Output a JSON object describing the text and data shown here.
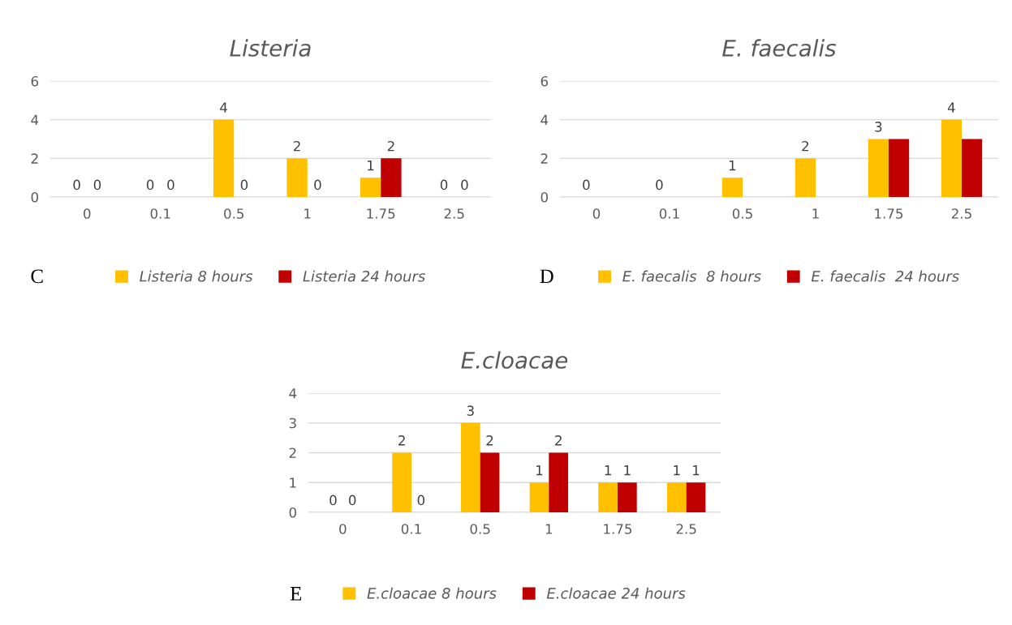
{
  "chart_data": [
    {
      "type": "bar",
      "title": "Listeria",
      "categories": [
        "0",
        "0.1",
        "0.5",
        "1",
        "1.75",
        "2.5"
      ],
      "ylim": [
        0,
        6
      ],
      "yticks": [
        0,
        2,
        4,
        6
      ],
      "grid": "y",
      "legend": "bottom",
      "data_labels": true,
      "annotations": [
        "C"
      ],
      "series": [
        {
          "name": "Listeria 8 hours",
          "color": "#ffc000",
          "values": [
            0,
            0,
            4,
            2,
            1,
            0
          ]
        },
        {
          "name": "Listeria 24 hours",
          "color": "#c00000",
          "values": [
            0,
            0,
            0,
            0,
            2,
            0
          ]
        }
      ]
    },
    {
      "type": "bar",
      "title": "E. faecalis",
      "categories": [
        "0",
        "0.1",
        "0.5",
        "1",
        "1.75",
        "2.5"
      ],
      "ylim": [
        0,
        6
      ],
      "yticks": [
        0,
        2,
        4,
        6
      ],
      "grid": "y",
      "legend": "bottom",
      "annotations": [
        "D"
      ],
      "series": [
        {
          "name": "E. faecalis  8 hours",
          "color": "#ffc000",
          "values": [
            0,
            0,
            1,
            2,
            3,
            4
          ],
          "value_labels": [
            "0",
            "0",
            "1",
            "2",
            "3",
            "4"
          ]
        },
        {
          "name": "E. faecalis  24 hours",
          "color": "#c00000",
          "values": [
            0,
            0,
            0,
            0,
            3,
            3
          ],
          "value_labels": [
            null,
            null,
            null,
            null,
            null,
            null
          ]
        }
      ]
    },
    {
      "type": "bar",
      "title": "E.cloacae",
      "categories": [
        "0",
        "0.1",
        "0.5",
        "1",
        "1.75",
        "2.5"
      ],
      "ylim": [
        0,
        4
      ],
      "yticks": [
        0,
        1,
        2,
        3,
        4
      ],
      "grid": "y",
      "legend": "bottom",
      "data_labels": true,
      "annotations": [
        "E"
      ],
      "series": [
        {
          "name": "E.cloacae 8 hours",
          "color": "#ffc000",
          "values": [
            0,
            2,
            3,
            1,
            1,
            1
          ]
        },
        {
          "name": "E.cloacae 24 hours",
          "color": "#c00000",
          "values": [
            0,
            0,
            2,
            2,
            1,
            1
          ]
        }
      ]
    }
  ]
}
